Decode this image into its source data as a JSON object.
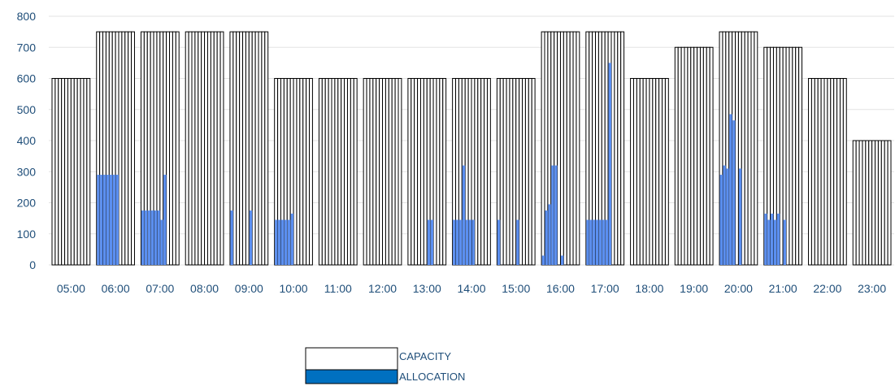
{
  "chart_data": {
    "type": "bar",
    "categories": [
      "05:00",
      "06:00",
      "07:00",
      "08:00",
      "09:00",
      "10:00",
      "11:00",
      "12:00",
      "13:00",
      "14:00",
      "15:00",
      "16:00",
      "17:00",
      "18:00",
      "19:00",
      "20:00",
      "21:00",
      "22:00",
      "23:00"
    ],
    "sub_slots_per_category": 12,
    "ylim": [
      0,
      800
    ],
    "yticks": [
      0,
      100,
      200,
      300,
      400,
      500,
      600,
      700,
      800
    ],
    "grid": true,
    "legend_position": "bottom",
    "series": [
      {
        "name": "CAPACITY",
        "values": [
          600,
          750,
          750,
          750,
          750,
          600,
          600,
          600,
          600,
          600,
          600,
          750,
          750,
          600,
          700,
          750,
          700,
          600,
          400
        ]
      },
      {
        "name": "ALLOCATION",
        "values": [
          [
            0,
            0,
            0,
            0,
            0,
            0,
            0,
            0,
            0,
            0,
            0,
            0
          ],
          [
            290,
            290,
            290,
            290,
            290,
            290,
            290,
            0,
            0,
            0,
            0,
            0
          ],
          [
            175,
            175,
            175,
            175,
            175,
            175,
            145,
            290,
            0,
            0,
            0,
            0
          ],
          [
            0,
            0,
            0,
            0,
            0,
            0,
            0,
            0,
            0,
            0,
            0,
            0
          ],
          [
            175,
            0,
            0,
            0,
            0,
            0,
            175,
            0,
            0,
            0,
            0,
            0
          ],
          [
            145,
            145,
            145,
            145,
            145,
            165,
            0,
            0,
            0,
            0,
            0,
            0
          ],
          [
            0,
            0,
            0,
            0,
            0,
            0,
            0,
            0,
            0,
            0,
            0,
            0
          ],
          [
            0,
            0,
            0,
            0,
            0,
            0,
            0,
            0,
            0,
            0,
            0,
            0
          ],
          [
            0,
            0,
            0,
            0,
            0,
            0,
            145,
            145,
            0,
            0,
            0,
            0
          ],
          [
            145,
            145,
            145,
            320,
            145,
            145,
            145,
            0,
            0,
            0,
            0,
            0
          ],
          [
            145,
            0,
            0,
            0,
            0,
            0,
            145,
            0,
            0,
            0,
            0,
            0
          ],
          [
            30,
            175,
            195,
            320,
            320,
            0,
            30,
            0,
            0,
            0,
            0,
            0
          ],
          [
            145,
            145,
            145,
            145,
            145,
            145,
            145,
            650,
            0,
            0,
            0,
            0
          ],
          [
            0,
            0,
            0,
            0,
            0,
            0,
            0,
            0,
            0,
            0,
            0,
            0
          ],
          [
            0,
            0,
            0,
            0,
            0,
            0,
            0,
            0,
            0,
            0,
            0,
            0
          ],
          [
            290,
            320,
            310,
            485,
            465,
            0,
            310,
            0,
            0,
            0,
            0,
            0
          ],
          [
            165,
            145,
            165,
            145,
            165,
            0,
            145,
            0,
            0,
            0,
            0,
            0
          ],
          [
            0,
            0,
            0,
            0,
            0,
            0,
            0,
            0,
            0,
            0,
            0,
            0
          ],
          [
            0,
            0,
            0,
            0,
            0,
            0,
            0,
            0,
            0,
            0,
            0,
            0
          ]
        ]
      }
    ]
  },
  "colors": {
    "capacity_fill": "#ffffff",
    "capacity_stroke": "#000000",
    "allocation_fill": "#5b8ff0",
    "legend_allocation_fill": "#0070c0",
    "gridline": "#e3e3e3",
    "tick_text": "#1f4e79"
  }
}
